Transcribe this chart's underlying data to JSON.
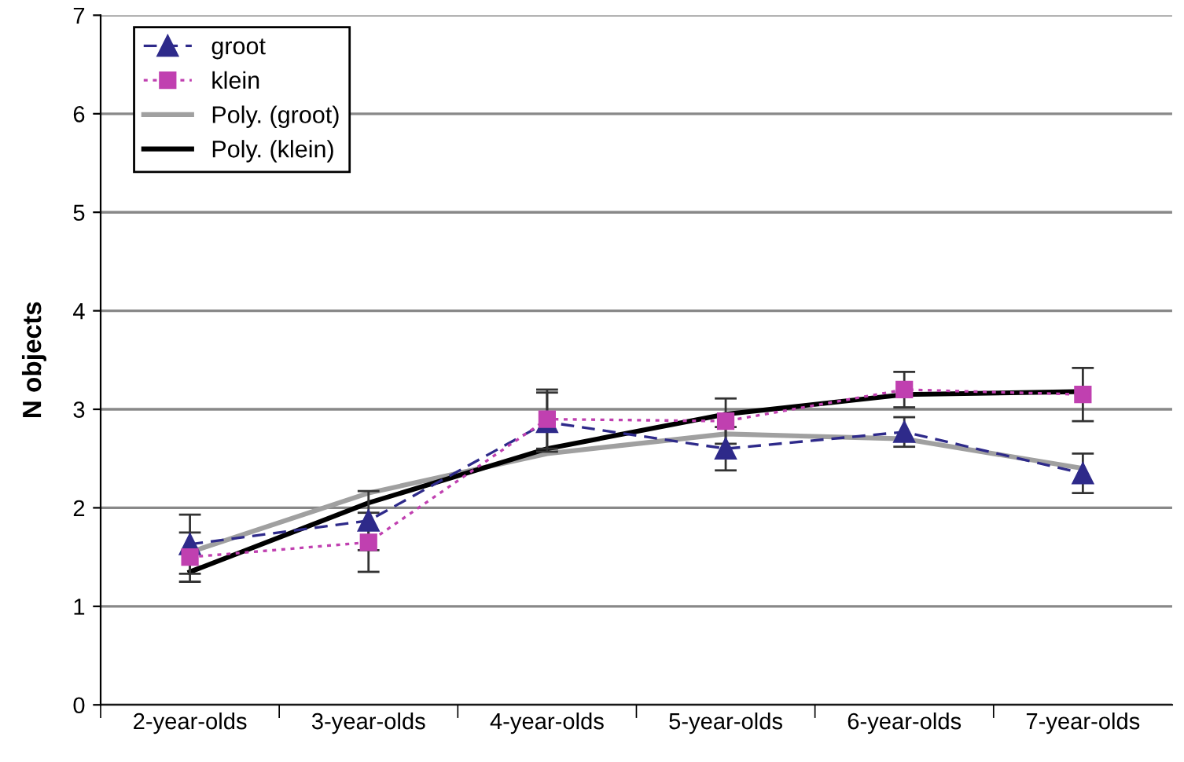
{
  "chart_data": {
    "type": "line",
    "ylabel": "N objects",
    "categories": [
      "2-year-olds",
      "3-year-olds",
      "4-year-olds",
      "5-year-olds",
      "6-year-olds",
      "7-year-olds"
    ],
    "series": [
      {
        "name": "groot",
        "color": "#2e2a8a",
        "values": [
          1.63,
          1.87,
          2.87,
          2.6,
          2.77,
          2.35
        ],
        "errors": [
          0.3,
          0.3,
          0.3,
          0.22,
          0.15,
          0.2
        ],
        "marker": "triangle",
        "line_style": "dashed"
      },
      {
        "name": "klein",
        "color": "#c040b0",
        "values": [
          1.5,
          1.65,
          2.9,
          2.88,
          3.2,
          3.15
        ],
        "errors": [
          0.25,
          0.3,
          0.3,
          0.23,
          0.18,
          0.27
        ],
        "marker": "square",
        "line_style": "dotted"
      },
      {
        "name": "Poly. (groot)",
        "color": "#a0a0a0",
        "values": [
          1.55,
          2.15,
          2.55,
          2.75,
          2.7,
          2.4
        ],
        "marker": "none",
        "line_style": "solid"
      },
      {
        "name": "Poly. (klein)",
        "color": "#000000",
        "values": [
          1.35,
          2.05,
          2.6,
          2.95,
          3.15,
          3.18
        ],
        "marker": "none",
        "line_style": "solid"
      }
    ],
    "ylim": [
      0,
      7
    ],
    "yticks": [
      0,
      1,
      2,
      3,
      4,
      5,
      6,
      7
    ],
    "grid": "y",
    "legend": "top left"
  }
}
